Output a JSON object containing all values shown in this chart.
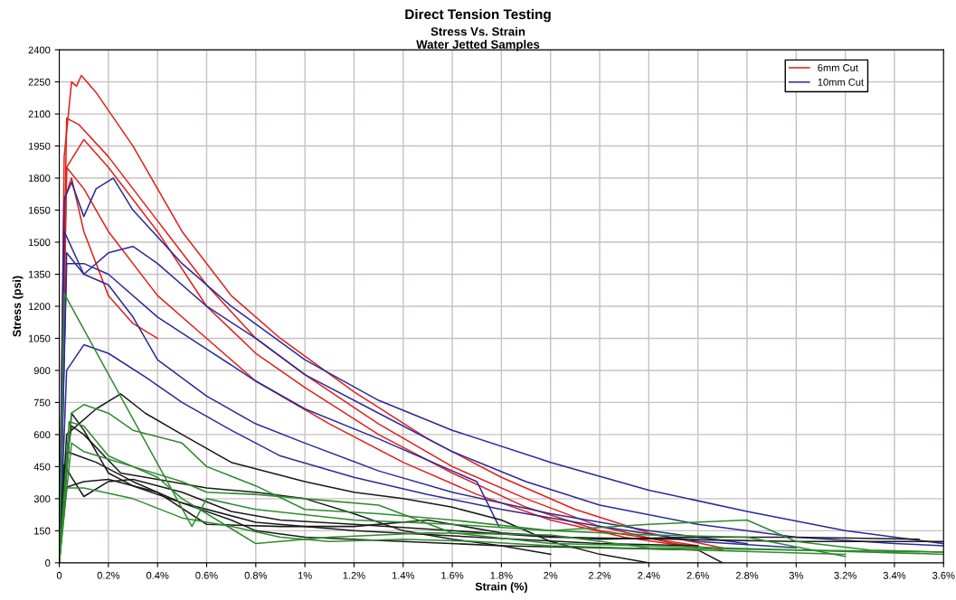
{
  "chart_data": {
    "type": "line",
    "title": "Direct Tension Testing",
    "subtitle": "Stress Vs. Strain\nWater Jetted Samples",
    "xlabel": "Strain (%)",
    "ylabel": "Stress (psi)",
    "xlim": [
      0,
      3.6
    ],
    "ylim": [
      0,
      2400
    ],
    "xticks": [
      {
        "value": 0,
        "label": "0"
      },
      {
        "value": 0.2,
        "label": "0.2%"
      },
      {
        "value": 0.4,
        "label": "0.4%"
      },
      {
        "value": 0.6,
        "label": "0.6%"
      },
      {
        "value": 0.8,
        "label": "0.8%"
      },
      {
        "value": 1,
        "label": "1%"
      },
      {
        "value": 1.2,
        "label": "1.2%"
      },
      {
        "value": 1.4,
        "label": "1.4%"
      },
      {
        "value": 1.6,
        "label": "1.6%"
      },
      {
        "value": 1.8,
        "label": "1.8%"
      },
      {
        "value": 2,
        "label": "2%"
      },
      {
        "value": 2.2,
        "label": "2.2%"
      },
      {
        "value": 2.4,
        "label": "2.4%"
      },
      {
        "value": 2.6,
        "label": "2.6%"
      },
      {
        "value": 2.8,
        "label": "2.8%"
      },
      {
        "value": 3,
        "label": "3%"
      },
      {
        "value": 3.2,
        "label": "3.2%"
      },
      {
        "value": 3.4,
        "label": "3.4%"
      },
      {
        "value": 3.6,
        "label": "3.6%"
      }
    ],
    "yticks": [
      0,
      150,
      300,
      450,
      600,
      750,
      900,
      1050,
      1200,
      1350,
      1500,
      1650,
      1800,
      1950,
      2100,
      2250,
      2400
    ],
    "grid": true,
    "legend": "top right",
    "marker": "none",
    "line_style": "solid",
    "series": [
      {
        "name": "6mm Cut",
        "color": "#e0201a",
        "x": [
          0,
          0.02,
          0.05,
          0.07,
          0.09,
          0.15,
          0.3,
          0.5,
          0.7,
          0.9,
          1.2,
          1.5,
          1.8,
          2.1,
          2.4,
          2.7
        ],
        "values": [
          0,
          1900,
          2250,
          2230,
          2280,
          2200,
          1950,
          1550,
          1250,
          1050,
          800,
          580,
          400,
          250,
          140,
          70
        ]
      },
      {
        "color": "#e0201a",
        "x": [
          0,
          0.03,
          0.08,
          0.2,
          0.4,
          0.6,
          0.8,
          1.0,
          1.3,
          1.6,
          1.9,
          2.2,
          2.5,
          2.7
        ],
        "values": [
          0,
          2080,
          2050,
          1900,
          1600,
          1300,
          1050,
          880,
          650,
          450,
          300,
          170,
          90,
          60
        ]
      },
      {
        "color": "#e0201a",
        "x": [
          0,
          0.03,
          0.1,
          0.2,
          0.4,
          0.6,
          0.8,
          1.0,
          1.3,
          1.6,
          1.9,
          2.2,
          2.6
        ],
        "values": [
          0,
          1850,
          1980,
          1850,
          1550,
          1200,
          980,
          820,
          600,
          420,
          260,
          150,
          80
        ]
      },
      {
        "color": "#e0201a",
        "x": [
          0,
          0.03,
          0.1,
          0.2,
          0.4,
          0.6,
          0.8,
          1.1,
          1.4,
          1.7,
          2.0,
          2.3,
          2.6
        ],
        "values": [
          0,
          1850,
          1750,
          1550,
          1250,
          1050,
          850,
          650,
          470,
          320,
          200,
          120,
          70
        ]
      },
      {
        "color": "#e0201a",
        "x": [
          0,
          0.02,
          0.05,
          0.1,
          0.2,
          0.3,
          0.4
        ],
        "values": [
          0,
          1700,
          1800,
          1550,
          1250,
          1120,
          1050
        ]
      },
      {
        "name": "10mm Cut",
        "color": "#2a2a9a",
        "x": [
          0,
          0.02,
          0.05,
          0.1,
          0.15,
          0.22,
          0.3,
          0.5,
          0.7,
          1.0,
          1.3,
          1.6,
          2.0,
          2.4,
          2.8,
          3.2,
          3.6
        ],
        "values": [
          0,
          1700,
          1780,
          1620,
          1750,
          1800,
          1650,
          1400,
          1200,
          950,
          760,
          620,
          470,
          340,
          240,
          150,
          90
        ]
      },
      {
        "color": "#2a2a9a",
        "x": [
          0,
          0.02,
          0.1,
          0.2,
          0.3,
          0.4,
          0.6,
          0.8,
          1.0,
          1.3,
          1.6,
          1.9,
          2.2,
          2.6,
          3.0,
          3.4,
          3.6
        ],
        "values": [
          0,
          1550,
          1350,
          1450,
          1480,
          1400,
          1200,
          1050,
          880,
          700,
          520,
          380,
          270,
          180,
          120,
          90,
          80
        ]
      },
      {
        "color": "#2a2a9a",
        "x": [
          0,
          0.03,
          0.1,
          0.2,
          0.4,
          0.6,
          0.8,
          1.0,
          1.3,
          1.6,
          1.7,
          1.79
        ],
        "values": [
          0,
          1400,
          1400,
          1350,
          1150,
          1000,
          850,
          720,
          580,
          430,
          380,
          170
        ]
      },
      {
        "color": "#2a2a9a",
        "x": [
          0,
          0.03,
          0.1,
          0.2,
          0.3,
          0.4,
          0.6,
          0.8,
          1.0,
          1.3,
          1.6,
          2.0,
          2.4,
          2.8
        ],
        "values": [
          0,
          1450,
          1350,
          1300,
          1150,
          950,
          780,
          650,
          560,
          430,
          330,
          230,
          150,
          90
        ]
      },
      {
        "color": "#2a2a9a",
        "x": [
          0,
          0.03,
          0.1,
          0.2,
          0.35,
          0.5,
          0.7,
          0.9,
          1.2,
          1.5,
          1.8,
          2.2,
          2.6,
          3.0
        ],
        "values": [
          0,
          900,
          1020,
          980,
          870,
          750,
          620,
          500,
          400,
          320,
          250,
          170,
          100,
          70
        ]
      },
      {
        "color": "#1a1a1a",
        "x": [
          0,
          0.03,
          0.15,
          0.25,
          0.35,
          0.5,
          0.7,
          1.0,
          1.2,
          1.4,
          1.6,
          1.8,
          2.0,
          2.2,
          2.4
        ],
        "values": [
          0,
          600,
          720,
          790,
          700,
          600,
          470,
          380,
          330,
          300,
          260,
          200,
          100,
          40,
          0
        ]
      },
      {
        "color": "#1a1a1a",
        "x": [
          0,
          0.02,
          0.05,
          0.1,
          0.25,
          0.4,
          0.6,
          0.8,
          1.0,
          1.2,
          1.4,
          1.6,
          1.8,
          2.0
        ],
        "values": [
          0,
          400,
          640,
          600,
          420,
          390,
          350,
          330,
          300,
          230,
          150,
          110,
          80,
          40
        ]
      },
      {
        "color": "#1a1a1a",
        "x": [
          0,
          0.05,
          0.1,
          0.2,
          0.3,
          0.5,
          0.7,
          0.8,
          1.0,
          1.4,
          1.8,
          2.2,
          2.6,
          2.7
        ],
        "values": [
          0,
          700,
          620,
          420,
          360,
          280,
          200,
          150,
          120,
          100,
          80,
          70,
          60,
          0
        ]
      },
      {
        "color": "#1a1a1a",
        "x": [
          0,
          0.02,
          0.05,
          0.1,
          0.2,
          0.3,
          0.5,
          0.7,
          0.9,
          1.2,
          1.6,
          2.0,
          2.5,
          3.0,
          3.6
        ],
        "values": [
          0,
          460,
          400,
          310,
          380,
          390,
          330,
          240,
          200,
          180,
          150,
          120,
          110,
          100,
          100
        ]
      },
      {
        "color": "#1a1a1a",
        "x": [
          0,
          0.02,
          0.1,
          0.2,
          0.4,
          0.6,
          0.9,
          1.2,
          1.5,
          1.8,
          2.2,
          2.6,
          3.0,
          3.5
        ],
        "values": [
          0,
          350,
          380,
          390,
          330,
          180,
          170,
          170,
          200,
          140,
          110,
          120,
          120,
          110
        ]
      },
      {
        "color": "#1a1a1a",
        "x": [
          0,
          0.03,
          0.15,
          0.3,
          0.5,
          0.8,
          1.2,
          1.7,
          2.2,
          2.6
        ],
        "values": [
          0,
          520,
          470,
          380,
          280,
          190,
          150,
          120,
          90,
          80
        ]
      },
      {
        "color": "#2e8b2e",
        "x": [
          0,
          0.02,
          0.54,
          0.6,
          0.8,
          1.2,
          1.6,
          2.0,
          2.4,
          2.8,
          3.2
        ],
        "values": [
          0,
          1260,
          170,
          300,
          250,
          200,
          180,
          150,
          130,
          120,
          30
        ]
      },
      {
        "color": "#2e8b2e",
        "x": [
          0,
          0.05,
          0.1,
          0.2,
          0.3,
          0.5,
          0.6,
          0.8,
          1.0,
          1.3,
          1.6,
          2.0,
          2.4,
          2.8,
          3.0,
          3.3,
          3.6
        ],
        "values": [
          0,
          700,
          740,
          700,
          620,
          560,
          450,
          360,
          250,
          230,
          200,
          150,
          180,
          200,
          100,
          60,
          50
        ]
      },
      {
        "color": "#2e8b2e",
        "x": [
          0,
          0.05,
          0.1,
          0.3,
          0.5,
          0.6,
          0.8,
          1.0,
          1.3,
          1.6,
          2.0,
          2.4,
          3.0,
          3.6
        ],
        "values": [
          0,
          560,
          520,
          450,
          380,
          330,
          320,
          300,
          270,
          140,
          90,
          80,
          60,
          40
        ]
      },
      {
        "color": "#2e8b2e",
        "x": [
          0,
          0.03,
          0.1,
          0.3,
          0.5,
          0.7,
          0.9,
          1.1,
          1.4,
          1.7,
          2.0,
          2.6,
          3.2
        ],
        "values": [
          0,
          350,
          350,
          300,
          210,
          170,
          120,
          100,
          110,
          100,
          80,
          60,
          40
        ]
      },
      {
        "color": "#2e8b2e",
        "x": [
          0,
          0.04,
          0.1,
          0.2,
          0.4,
          0.5,
          0.7,
          0.8,
          1.1,
          1.5,
          2.0,
          2.4,
          3.0,
          3.6
        ],
        "values": [
          0,
          660,
          640,
          500,
          400,
          300,
          160,
          90,
          120,
          140,
          130,
          70,
          60,
          50
        ]
      }
    ]
  }
}
